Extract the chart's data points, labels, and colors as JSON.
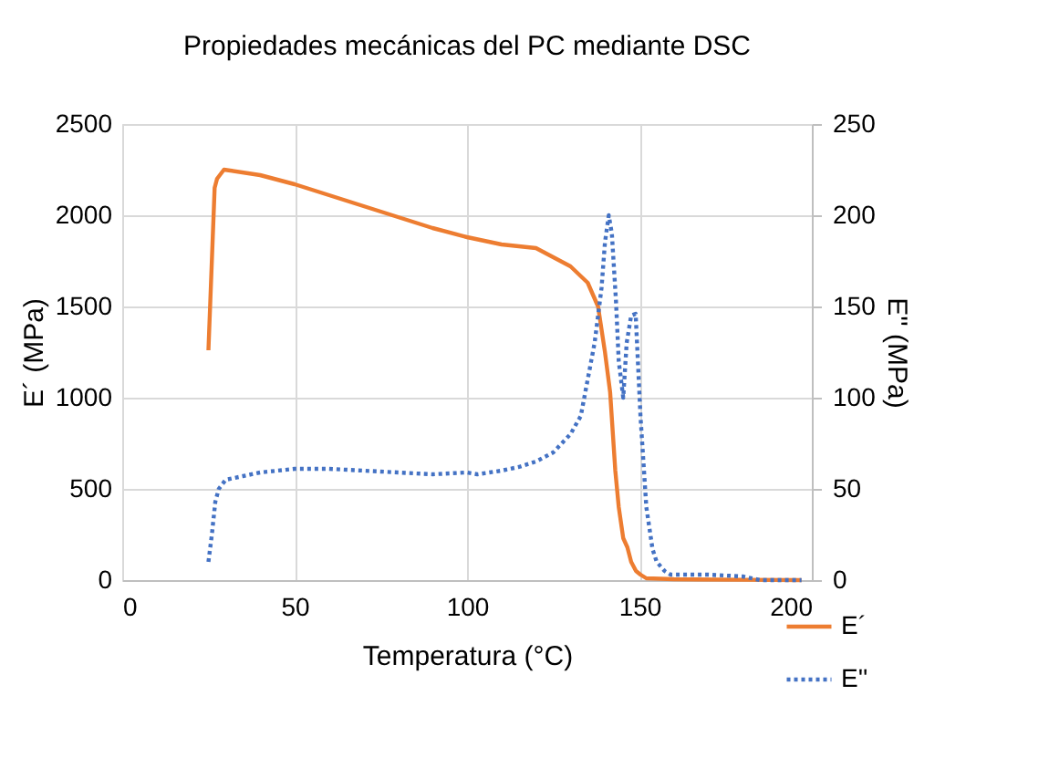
{
  "chart_data": {
    "type": "line",
    "title": "Propiedades mecánicas del PC mediante DSC",
    "xlabel": "Temperatura (°C)",
    "ylabel": "E´ (MPa)",
    "y2label": "E'' (MPa)",
    "xlim": [
      0,
      200
    ],
    "xticks": [
      0,
      50,
      100,
      150,
      200
    ],
    "ylim": [
      0,
      2500
    ],
    "yticks": [
      0,
      500,
      1000,
      1500,
      2000,
      2500
    ],
    "y2lim": [
      0,
      250
    ],
    "y2ticks": [
      0,
      50,
      100,
      150,
      200,
      250
    ],
    "grid": true,
    "legend": "bottom right",
    "series": [
      {
        "name": "E´",
        "color": "#ed7d31",
        "line_style": "solid",
        "x": [
          25,
          26.8,
          27.5,
          29.5,
          40,
          50,
          60,
          70,
          80,
          90,
          100,
          110,
          120,
          130,
          135,
          138,
          140,
          141.5,
          143,
          144,
          145.3,
          146.5,
          147.6,
          149,
          150.3,
          152,
          160,
          180,
          197
        ],
        "values": [
          1260,
          2150,
          2200,
          2250,
          2220,
          2170,
          2110,
          2050,
          1990,
          1930,
          1880,
          1840,
          1820,
          1720,
          1630,
          1500,
          1250,
          1030,
          600,
          400,
          230,
          180,
          100,
          50,
          30,
          10,
          5,
          2,
          0
        ]
      },
      {
        "name": "E''",
        "color": "#4472c4",
        "line_style": "dotted",
        "axis": "y2",
        "x": [
          25,
          26,
          27,
          28,
          30,
          35,
          40,
          50,
          60,
          70,
          80,
          90,
          100,
          103,
          110,
          115,
          120,
          125,
          130,
          133,
          135,
          137,
          139,
          140,
          141.1,
          142,
          143.2,
          144,
          145.3,
          146.3,
          147.6,
          148.9,
          150.3,
          152,
          153.8,
          155,
          157.3,
          159,
          170,
          180,
          185,
          197
        ],
        "values": [
          10,
          25,
          43,
          50,
          55,
          57,
          59,
          61,
          61,
          60,
          59,
          58,
          59,
          58,
          60,
          62,
          65,
          70,
          80,
          90,
          110,
          130,
          160,
          185,
          200,
          190,
          153,
          120,
          100,
          130,
          145,
          146,
          90,
          40,
          17,
          10,
          5,
          3,
          3,
          2,
          0,
          0
        ]
      }
    ]
  }
}
